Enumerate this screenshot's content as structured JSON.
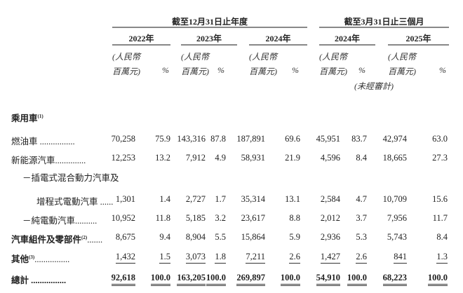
{
  "header": {
    "group_year": "截至12月31日止年度",
    "group_quarter": "截至3月31日止三個月",
    "years": [
      "2022年",
      "2023年",
      "2024年",
      "2024年",
      "2025年"
    ],
    "unit_line1": "(人民幣",
    "unit_line2": "百萬元)",
    "pct": "%",
    "unaudited": "(未經審計)"
  },
  "rows": [
    {
      "label": "乘用車",
      "note": "(1)",
      "bold": true,
      "values": []
    },
    {
      "label": "燃油車 ................",
      "values": [
        "70,258",
        "75.9",
        "143,316",
        "87.8",
        "187,891",
        "69.6",
        "45,951",
        "83.7",
        "42,974",
        "63.0"
      ]
    },
    {
      "label": "新能源汽車..............",
      "values": [
        "12,253",
        "13.2",
        "7,912",
        "4.9",
        "58,931",
        "21.9",
        "4,596",
        "8.4",
        "18,665",
        "27.3"
      ]
    },
    {
      "label": "－插電式混合動力汽車及",
      "indent": 1,
      "values": []
    },
    {
      "label": "增程式電動汽車 ......",
      "indent": 2,
      "values": [
        "1,301",
        "1.4",
        "2,727",
        "1.7",
        "35,314",
        "13.1",
        "2,584",
        "4.7",
        "10,709",
        "15.6"
      ]
    },
    {
      "label": "－純電動汽車..........",
      "indent": 1,
      "values": [
        "10,952",
        "11.8",
        "5,185",
        "3.2",
        "23,617",
        "8.8",
        "2,012",
        "3.7",
        "7,956",
        "11.7"
      ]
    },
    {
      "label": "汽車組件及零部件",
      "note": "(2)",
      "suffix": ".......",
      "bold": true,
      "values": [
        "8,675",
        "9.4",
        "8,904",
        "5.5",
        "15,864",
        "5.9",
        "2,936",
        "5.3",
        "5,743",
        "8.4"
      ]
    },
    {
      "label": "其他",
      "note": "(3)",
      "suffix": "................",
      "bold": true,
      "underline": "single",
      "values": [
        "1,432",
        "1.5",
        "3,073",
        "1.8",
        "7,211",
        "2.6",
        "1,427",
        "2.6",
        "841",
        "1.3"
      ]
    },
    {
      "label": "總計 ................",
      "bold": true,
      "total": true,
      "underline": "double",
      "values": [
        "92,618",
        "100.0",
        "163,205",
        "100.0",
        "269,897",
        "100.0",
        "54,910",
        "100.0",
        "68,223",
        "100.0"
      ]
    }
  ]
}
